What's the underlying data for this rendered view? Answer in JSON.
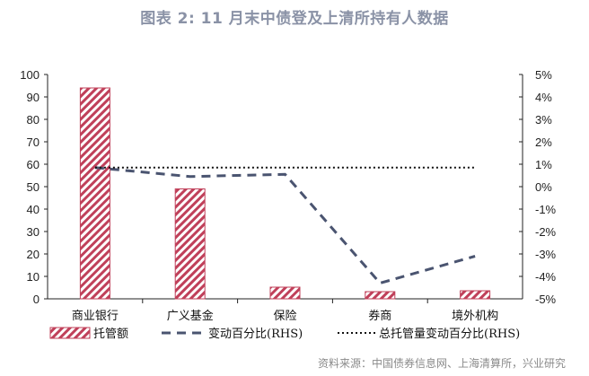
{
  "title": "图表 2:  11 月末中债登及上清所持有人数据",
  "source": "资料来源：中国债券信息网、上海清算所，兴业研究",
  "colors": {
    "bar": "#c0405a",
    "dashed_line": "#4a5470",
    "dotted_line": "#111111",
    "title": "#8a92a6"
  },
  "legend": {
    "bar": "托管额",
    "dashed": "变动百分比(RHS)",
    "dotted": "总托管量变动百分比(RHS)"
  },
  "chart_data": {
    "type": "bar",
    "title": "图表 2:  11 月末中债登及上清所持有人数据",
    "categories": [
      "商业银行",
      "广义基金",
      "保险",
      "券商",
      "境外机构"
    ],
    "series": [
      {
        "name": "托管额",
        "type": "bar",
        "axis": "left",
        "values": [
          94,
          49,
          5.2,
          3.2,
          3.6
        ]
      },
      {
        "name": "变动百分比(RHS)",
        "type": "line",
        "style": "dashed",
        "axis": "right",
        "values": [
          0.85,
          0.45,
          0.55,
          -4.3,
          -3.1
        ]
      },
      {
        "name": "总托管量变动百分比(RHS)",
        "type": "line",
        "style": "dotted",
        "axis": "right",
        "values": [
          0.85,
          0.85,
          0.85,
          0.85,
          0.85
        ]
      }
    ],
    "left_axis": {
      "ylim": [
        0,
        100
      ],
      "ticks": [
        "0",
        "10",
        "20",
        "30",
        "40",
        "50",
        "60",
        "70",
        "80",
        "90",
        "100"
      ]
    },
    "right_axis": {
      "ylim": [
        -5,
        5
      ],
      "unit": "%",
      "ticks": [
        "-5%",
        "-4%",
        "-3%",
        "-2%",
        "-1%",
        "0%",
        "1%",
        "2%",
        "3%",
        "4%",
        "5%"
      ]
    },
    "xlabel": "",
    "ylabel": "",
    "grid": false,
    "legend_position": "bottom"
  }
}
